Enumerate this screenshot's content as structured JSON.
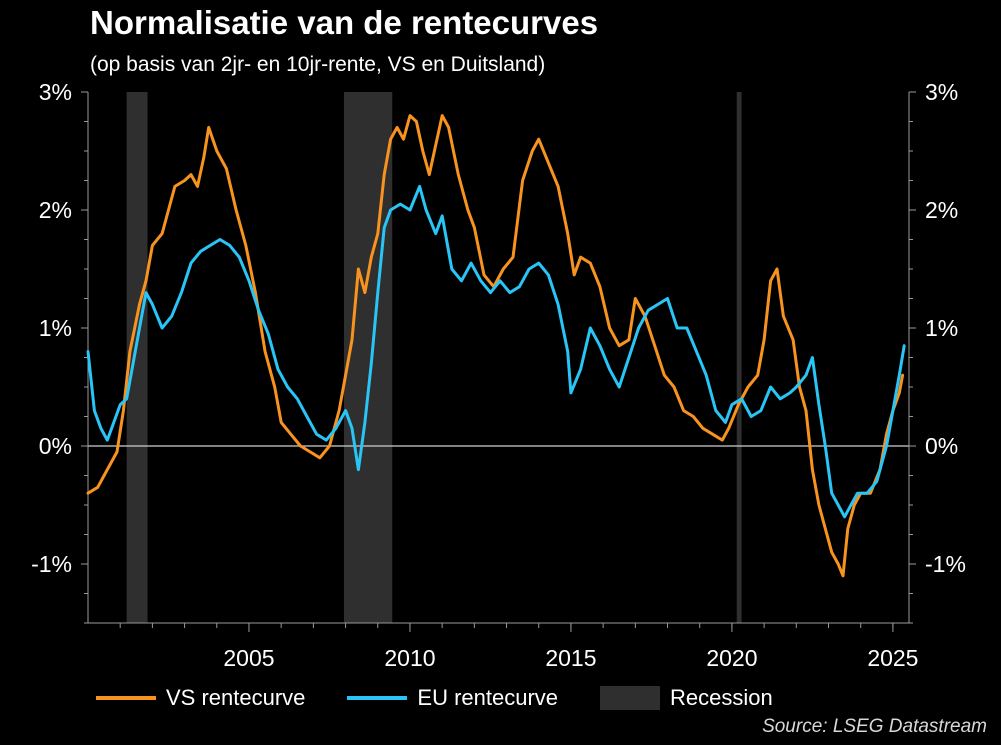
{
  "title": "Normalisatie van de rentecurves",
  "subtitle": "(op basis van 2jr- en 10jr-rente, VS en Duitsland)",
  "source": "Source: LSEG Datastream",
  "colors": {
    "background": "#000000",
    "us": "#F7931E",
    "eu": "#29C5F6",
    "recession": "#2f2f2f",
    "zero_line": "#cfcfcf"
  },
  "legend": {
    "us": "VS rentecurve",
    "eu": "EU rentecurve",
    "recession": "Recession"
  },
  "chart_data": {
    "type": "line",
    "title": "Normalisatie van de rentecurves",
    "subtitle": "(op basis van 2jr- en 10jr-rente, VS en Duitsland)",
    "xlabel": "",
    "ylabel": "",
    "xlim": [
      2000.0,
      2025.5
    ],
    "ylim": [
      -1.5,
      3.0
    ],
    "x_ticks": [
      2005,
      2010,
      2015,
      2020,
      2025
    ],
    "x_tick_labels": [
      "2005",
      "2010",
      "2015",
      "2020",
      "2025"
    ],
    "y_ticks": [
      -1,
      0,
      1,
      2,
      3
    ],
    "y_tick_labels": [
      "-1%",
      "0%",
      "1%",
      "2%",
      "3%"
    ],
    "grid": false,
    "legend_position": "bottom",
    "recessions": [
      [
        2001.2,
        2001.85
      ],
      [
        2007.95,
        2009.45
      ],
      [
        2020.15,
        2020.3
      ]
    ],
    "series": [
      {
        "name": "VS rentecurve",
        "color": "#F7931E",
        "points": [
          [
            2000.0,
            -0.4
          ],
          [
            2000.3,
            -0.35
          ],
          [
            2000.6,
            -0.2
          ],
          [
            2000.9,
            -0.05
          ],
          [
            2001.1,
            0.3
          ],
          [
            2001.3,
            0.8
          ],
          [
            2001.6,
            1.2
          ],
          [
            2001.8,
            1.4
          ],
          [
            2002.0,
            1.7
          ],
          [
            2002.3,
            1.8
          ],
          [
            2002.5,
            2.0
          ],
          [
            2002.7,
            2.2
          ],
          [
            2003.0,
            2.25
          ],
          [
            2003.2,
            2.3
          ],
          [
            2003.4,
            2.2
          ],
          [
            2003.6,
            2.45
          ],
          [
            2003.75,
            2.7
          ],
          [
            2004.0,
            2.5
          ],
          [
            2004.3,
            2.35
          ],
          [
            2004.6,
            2.0
          ],
          [
            2004.9,
            1.7
          ],
          [
            2005.2,
            1.3
          ],
          [
            2005.5,
            0.8
          ],
          [
            2005.8,
            0.5
          ],
          [
            2006.0,
            0.2
          ],
          [
            2006.3,
            0.1
          ],
          [
            2006.6,
            0.0
          ],
          [
            2006.9,
            -0.05
          ],
          [
            2007.2,
            -0.1
          ],
          [
            2007.5,
            0.0
          ],
          [
            2007.8,
            0.3
          ],
          [
            2008.0,
            0.6
          ],
          [
            2008.2,
            0.9
          ],
          [
            2008.4,
            1.5
          ],
          [
            2008.6,
            1.3
          ],
          [
            2008.8,
            1.6
          ],
          [
            2009.0,
            1.8
          ],
          [
            2009.2,
            2.3
          ],
          [
            2009.4,
            2.6
          ],
          [
            2009.6,
            2.7
          ],
          [
            2009.8,
            2.6
          ],
          [
            2010.0,
            2.8
          ],
          [
            2010.2,
            2.75
          ],
          [
            2010.4,
            2.5
          ],
          [
            2010.6,
            2.3
          ],
          [
            2010.8,
            2.55
          ],
          [
            2011.0,
            2.8
          ],
          [
            2011.2,
            2.7
          ],
          [
            2011.5,
            2.3
          ],
          [
            2011.8,
            2.0
          ],
          [
            2012.0,
            1.85
          ],
          [
            2012.3,
            1.45
          ],
          [
            2012.6,
            1.35
          ],
          [
            2012.9,
            1.5
          ],
          [
            2013.2,
            1.6
          ],
          [
            2013.5,
            2.25
          ],
          [
            2013.8,
            2.5
          ],
          [
            2014.0,
            2.6
          ],
          [
            2014.3,
            2.4
          ],
          [
            2014.6,
            2.2
          ],
          [
            2014.9,
            1.8
          ],
          [
            2015.1,
            1.45
          ],
          [
            2015.3,
            1.6
          ],
          [
            2015.6,
            1.55
          ],
          [
            2015.9,
            1.35
          ],
          [
            2016.2,
            1.0
          ],
          [
            2016.5,
            0.85
          ],
          [
            2016.8,
            0.9
          ],
          [
            2017.0,
            1.25
          ],
          [
            2017.3,
            1.1
          ],
          [
            2017.6,
            0.85
          ],
          [
            2017.9,
            0.6
          ],
          [
            2018.2,
            0.5
          ],
          [
            2018.5,
            0.3
          ],
          [
            2018.8,
            0.25
          ],
          [
            2019.1,
            0.15
          ],
          [
            2019.4,
            0.1
          ],
          [
            2019.7,
            0.05
          ],
          [
            2019.9,
            0.15
          ],
          [
            2020.2,
            0.35
          ],
          [
            2020.5,
            0.5
          ],
          [
            2020.8,
            0.6
          ],
          [
            2021.0,
            0.9
          ],
          [
            2021.2,
            1.4
          ],
          [
            2021.4,
            1.5
          ],
          [
            2021.6,
            1.1
          ],
          [
            2021.9,
            0.9
          ],
          [
            2022.1,
            0.5
          ],
          [
            2022.3,
            0.3
          ],
          [
            2022.5,
            -0.2
          ],
          [
            2022.7,
            -0.5
          ],
          [
            2022.9,
            -0.7
          ],
          [
            2023.1,
            -0.9
          ],
          [
            2023.3,
            -1.0
          ],
          [
            2023.45,
            -1.1
          ],
          [
            2023.6,
            -0.7
          ],
          [
            2023.8,
            -0.5
          ],
          [
            2024.0,
            -0.4
          ],
          [
            2024.3,
            -0.4
          ],
          [
            2024.6,
            -0.2
          ],
          [
            2024.8,
            0.1
          ],
          [
            2025.0,
            0.3
          ],
          [
            2025.2,
            0.45
          ],
          [
            2025.3,
            0.6
          ]
        ]
      },
      {
        "name": "EU rentecurve",
        "color": "#29C5F6",
        "points": [
          [
            2000.0,
            0.8
          ],
          [
            2000.2,
            0.3
          ],
          [
            2000.4,
            0.15
          ],
          [
            2000.6,
            0.05
          ],
          [
            2000.8,
            0.2
          ],
          [
            2001.0,
            0.35
          ],
          [
            2001.2,
            0.4
          ],
          [
            2001.4,
            0.7
          ],
          [
            2001.6,
            1.0
          ],
          [
            2001.8,
            1.3
          ],
          [
            2002.0,
            1.2
          ],
          [
            2002.3,
            1.0
          ],
          [
            2002.6,
            1.1
          ],
          [
            2002.9,
            1.3
          ],
          [
            2003.2,
            1.55
          ],
          [
            2003.5,
            1.65
          ],
          [
            2003.8,
            1.7
          ],
          [
            2004.1,
            1.75
          ],
          [
            2004.4,
            1.7
          ],
          [
            2004.7,
            1.6
          ],
          [
            2005.0,
            1.4
          ],
          [
            2005.3,
            1.15
          ],
          [
            2005.6,
            0.95
          ],
          [
            2005.9,
            0.65
          ],
          [
            2006.2,
            0.5
          ],
          [
            2006.5,
            0.4
          ],
          [
            2006.8,
            0.25
          ],
          [
            2007.1,
            0.1
          ],
          [
            2007.4,
            0.05
          ],
          [
            2007.7,
            0.15
          ],
          [
            2008.0,
            0.3
          ],
          [
            2008.2,
            0.15
          ],
          [
            2008.4,
            -0.2
          ],
          [
            2008.6,
            0.2
          ],
          [
            2008.8,
            0.7
          ],
          [
            2009.0,
            1.3
          ],
          [
            2009.2,
            1.85
          ],
          [
            2009.4,
            2.0
          ],
          [
            2009.7,
            2.05
          ],
          [
            2010.0,
            2.0
          ],
          [
            2010.3,
            2.2
          ],
          [
            2010.5,
            2.0
          ],
          [
            2010.8,
            1.8
          ],
          [
            2011.0,
            1.95
          ],
          [
            2011.3,
            1.5
          ],
          [
            2011.6,
            1.4
          ],
          [
            2011.9,
            1.55
          ],
          [
            2012.2,
            1.4
          ],
          [
            2012.5,
            1.3
          ],
          [
            2012.8,
            1.4
          ],
          [
            2013.1,
            1.3
          ],
          [
            2013.4,
            1.35
          ],
          [
            2013.7,
            1.5
          ],
          [
            2014.0,
            1.55
          ],
          [
            2014.3,
            1.45
          ],
          [
            2014.6,
            1.2
          ],
          [
            2014.9,
            0.8
          ],
          [
            2015.0,
            0.45
          ],
          [
            2015.3,
            0.65
          ],
          [
            2015.6,
            1.0
          ],
          [
            2015.9,
            0.85
          ],
          [
            2016.2,
            0.65
          ],
          [
            2016.5,
            0.5
          ],
          [
            2016.8,
            0.75
          ],
          [
            2017.1,
            1.0
          ],
          [
            2017.4,
            1.15
          ],
          [
            2017.7,
            1.2
          ],
          [
            2018.0,
            1.25
          ],
          [
            2018.3,
            1.0
          ],
          [
            2018.6,
            1.0
          ],
          [
            2018.9,
            0.8
          ],
          [
            2019.2,
            0.6
          ],
          [
            2019.5,
            0.3
          ],
          [
            2019.8,
            0.2
          ],
          [
            2020.0,
            0.35
          ],
          [
            2020.3,
            0.4
          ],
          [
            2020.6,
            0.25
          ],
          [
            2020.9,
            0.3
          ],
          [
            2021.2,
            0.5
          ],
          [
            2021.5,
            0.4
          ],
          [
            2021.8,
            0.45
          ],
          [
            2022.0,
            0.5
          ],
          [
            2022.3,
            0.6
          ],
          [
            2022.5,
            0.75
          ],
          [
            2022.7,
            0.35
          ],
          [
            2022.9,
            0.0
          ],
          [
            2023.1,
            -0.4
          ],
          [
            2023.3,
            -0.5
          ],
          [
            2023.5,
            -0.6
          ],
          [
            2023.7,
            -0.5
          ],
          [
            2023.9,
            -0.4
          ],
          [
            2024.2,
            -0.4
          ],
          [
            2024.5,
            -0.3
          ],
          [
            2024.8,
            0.0
          ],
          [
            2025.0,
            0.3
          ],
          [
            2025.2,
            0.6
          ],
          [
            2025.35,
            0.85
          ]
        ]
      }
    ]
  }
}
